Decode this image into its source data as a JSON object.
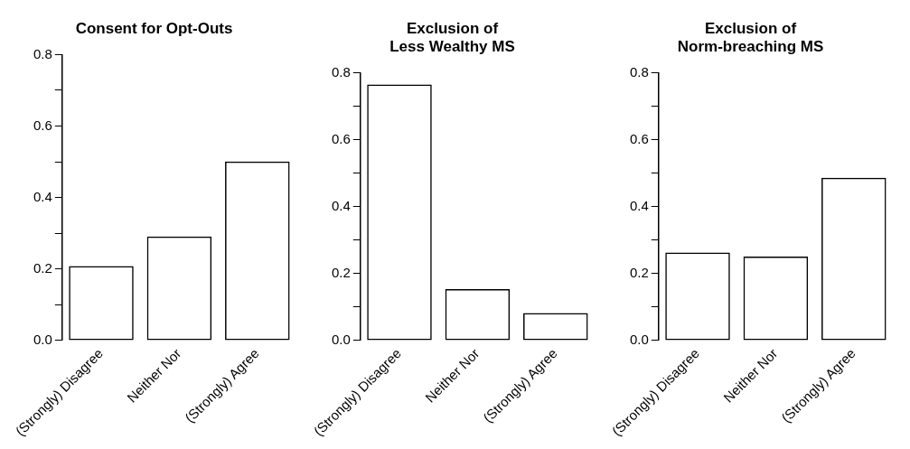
{
  "chart_data": [
    {
      "type": "bar",
      "title": "Consent for Opt-Outs",
      "categories": [
        "(Strongly) Disagree",
        "Neither Nor",
        "(Strongly) Agree"
      ],
      "values": [
        0.208,
        0.291,
        0.501
      ],
      "color": "#000000",
      "ylim": [
        0,
        0.8
      ],
      "yticks": [
        {
          "value": 0,
          "label": "0.0"
        },
        {
          "value": 0.1,
          "label": null
        },
        0.2,
        {
          "value": 0.3,
          "label": null
        },
        0.4,
        {
          "value": 0.5,
          "label": null
        },
        0.6,
        {
          "value": 0.7,
          "label": null
        },
        0.8
      ],
      "grid": false,
      "legend": false
    },
    {
      "type": "bar",
      "title": "Exclusion of\nLess Wealthy MS",
      "categories": [
        "(Strongly) Disagree",
        "Neither Nor",
        "(Strongly) Agree"
      ],
      "values": [
        0.766,
        0.154,
        0.082
      ],
      "color": "#000000",
      "ylim": [
        0,
        0.8
      ],
      "yticks": [
        {
          "value": 0,
          "label": "0.0"
        },
        {
          "value": 0.1,
          "label": null
        },
        0.2,
        {
          "value": 0.3,
          "label": null
        },
        0.4,
        {
          "value": 0.5,
          "label": null
        },
        0.6,
        {
          "value": 0.7,
          "label": null
        },
        0.8
      ],
      "grid": false,
      "legend": false
    },
    {
      "type": "bar",
      "title": "Exclusion of\nNorm-breaching MS",
      "categories": [
        "(Strongly) Disagree",
        "Neither Nor",
        "(Strongly) Agree"
      ],
      "values": [
        0.263,
        0.251,
        0.487
      ],
      "color": "#000000",
      "ylim": [
        0,
        0.8
      ],
      "yticks": [
        {
          "value": 0,
          "label": "0.0"
        },
        {
          "value": 0.1,
          "label": null
        },
        0.2,
        {
          "value": 0.3,
          "label": null
        },
        0.4,
        {
          "value": 0.5,
          "label": null
        },
        0.6,
        {
          "value": 0.7,
          "label": null
        },
        0.8
      ],
      "grid": false,
      "legend": false
    }
  ]
}
